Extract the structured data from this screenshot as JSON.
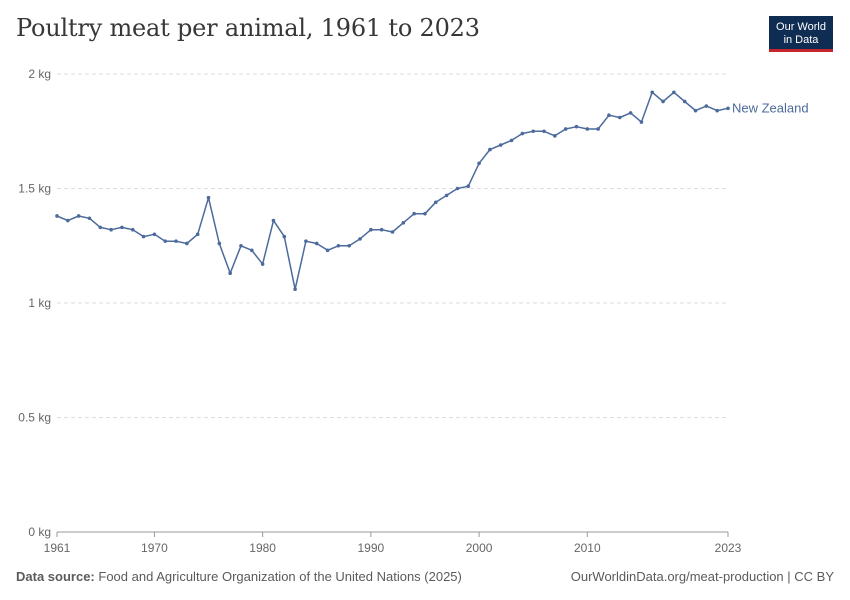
{
  "header": {
    "title": "Poultry meat per animal, 1961 to 2023",
    "logo_line1": "Our World",
    "logo_line2": "in Data"
  },
  "footer": {
    "source_label": "Data source:",
    "source_text": "Food and Agriculture Organization of the United Nations (2025)",
    "right_text": "OurWorldinData.org/meat-production | CC BY"
  },
  "colors": {
    "series": "#4c6a9c",
    "grid": "#dddddd",
    "axis": "#999999"
  },
  "chart_data": {
    "type": "line",
    "title": "Poultry meat per animal, 1961 to 2023",
    "xlabel": "",
    "ylabel": "",
    "xlim": [
      1961,
      2023
    ],
    "ylim": [
      0,
      2
    ],
    "x_ticks": [
      1961,
      1970,
      1980,
      1990,
      2000,
      2010,
      2023
    ],
    "y_ticks": [
      {
        "value": 0,
        "label": "0 kg"
      },
      {
        "value": 0.5,
        "label": "0.5 kg"
      },
      {
        "value": 1,
        "label": "1 kg"
      },
      {
        "value": 1.5,
        "label": "1.5 kg"
      },
      {
        "value": 2,
        "label": "2 kg"
      }
    ],
    "grid": true,
    "legend": "end-of-line label",
    "series": [
      {
        "name": "New Zealand",
        "x": [
          1961,
          1962,
          1963,
          1964,
          1965,
          1966,
          1967,
          1968,
          1969,
          1970,
          1971,
          1972,
          1973,
          1974,
          1975,
          1976,
          1977,
          1978,
          1979,
          1980,
          1981,
          1982,
          1983,
          1984,
          1985,
          1986,
          1987,
          1988,
          1989,
          1990,
          1991,
          1992,
          1993,
          1994,
          1995,
          1996,
          1997,
          1998,
          1999,
          2000,
          2001,
          2002,
          2003,
          2004,
          2005,
          2006,
          2007,
          2008,
          2009,
          2010,
          2011,
          2012,
          2013,
          2014,
          2015,
          2016,
          2017,
          2018,
          2019,
          2020,
          2021,
          2022,
          2023
        ],
        "values": [
          1.38,
          1.36,
          1.38,
          1.37,
          1.33,
          1.32,
          1.33,
          1.32,
          1.29,
          1.3,
          1.27,
          1.27,
          1.26,
          1.3,
          1.46,
          1.26,
          1.13,
          1.25,
          1.23,
          1.17,
          1.36,
          1.29,
          1.06,
          1.27,
          1.26,
          1.23,
          1.25,
          1.25,
          1.28,
          1.32,
          1.32,
          1.31,
          1.35,
          1.39,
          1.39,
          1.44,
          1.47,
          1.5,
          1.51,
          1.61,
          1.67,
          1.69,
          1.71,
          1.74,
          1.75,
          1.75,
          1.73,
          1.76,
          1.77,
          1.76,
          1.76,
          1.82,
          1.81,
          1.83,
          1.79,
          1.92,
          1.88,
          1.92,
          1.88,
          1.84,
          1.86,
          1.84,
          1.85
        ]
      }
    ]
  }
}
